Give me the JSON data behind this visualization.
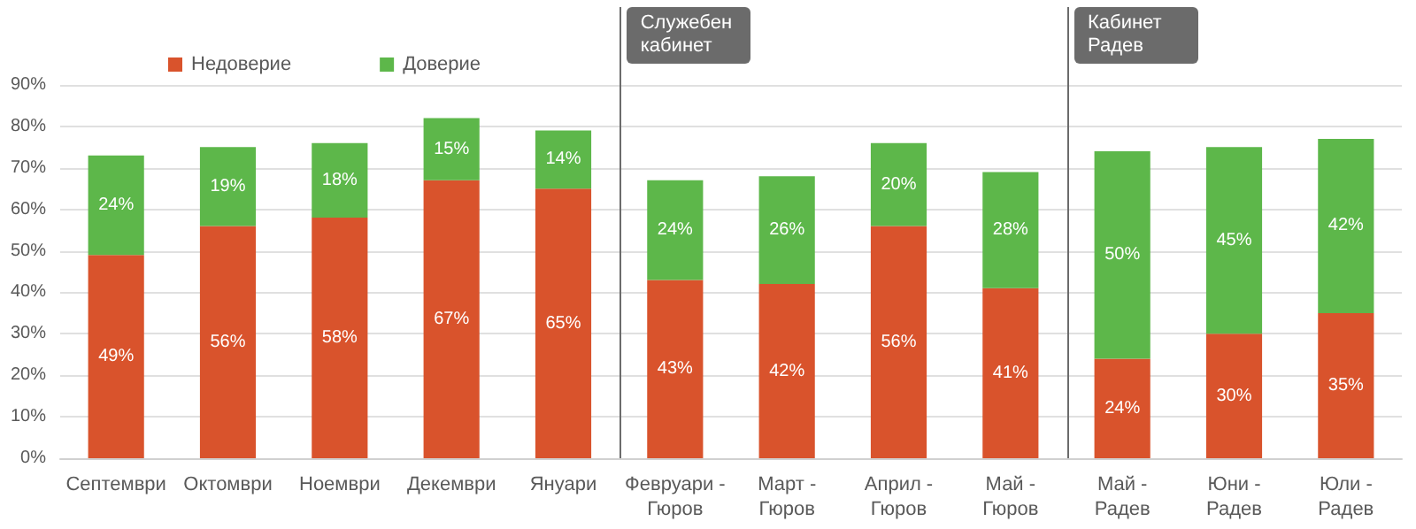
{
  "chart_data": {
    "type": "bar",
    "stacked": true,
    "grid": "y",
    "legend": "top",
    "categories": [
      "Септември",
      "Октомври",
      "Ноември",
      "Декември",
      "Януари",
      "Февруари - Гюров",
      "Март - Гюров",
      "Април - Гюров",
      "Май - Гюров",
      "Май - Радев",
      "Юни - Радев",
      "Юли - Радев"
    ],
    "series": [
      {
        "name": "Недоверие",
        "color": "#d9532c",
        "values": [
          49,
          56,
          58,
          67,
          65,
          43,
          42,
          56,
          41,
          24,
          30,
          35
        ],
        "value_labels": [
          "49%",
          "56%",
          "58%",
          "67%",
          "65%",
          "43%",
          "42%",
          "56%",
          "41%",
          "24%",
          "30%",
          "35%"
        ]
      },
      {
        "name": "Доверие",
        "color": "#5db74a",
        "values": [
          24,
          19,
          18,
          15,
          14,
          24,
          26,
          20,
          28,
          50,
          45,
          42
        ],
        "value_labels": [
          "24%",
          "19%",
          "18%",
          "15%",
          "14%",
          "24%",
          "26%",
          "20%",
          "28%",
          "50%",
          "45%",
          "42%"
        ]
      }
    ],
    "ylim": [
      0,
      90
    ],
    "yticks": [
      {
        "value": 0,
        "label": "0%"
      },
      {
        "value": 10,
        "label": "10%"
      },
      {
        "value": 20,
        "label": "20%"
      },
      {
        "value": 30,
        "label": "30%"
      },
      {
        "value": 40,
        "label": "40%"
      },
      {
        "value": 50,
        "label": "50%"
      },
      {
        "value": 60,
        "label": "60%"
      },
      {
        "value": 70,
        "label": "70%"
      },
      {
        "value": 80,
        "label": "80%"
      },
      {
        "value": 90,
        "label": "90%"
      }
    ],
    "annotations": [
      "Служебен кабинет",
      "Кабинет Радев"
    ]
  }
}
